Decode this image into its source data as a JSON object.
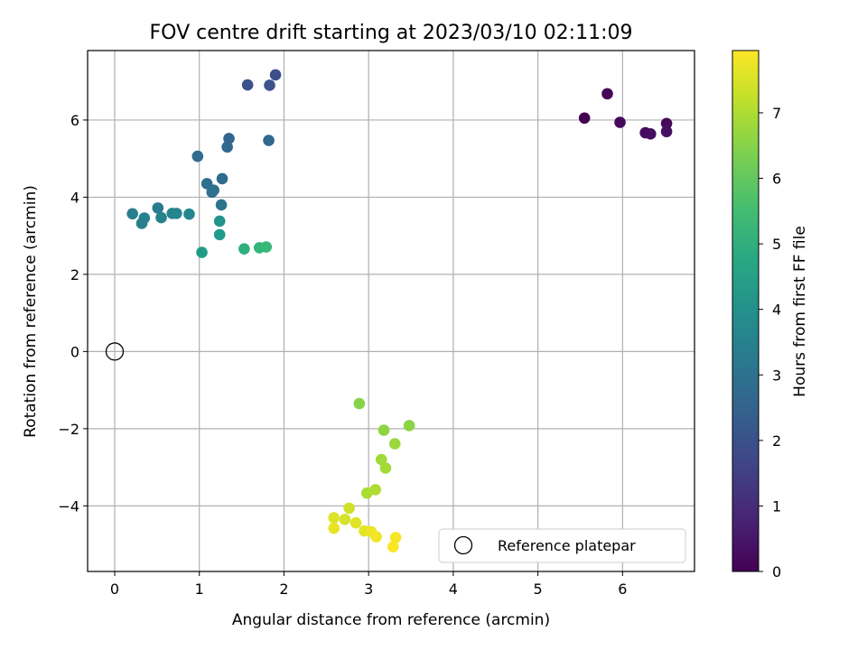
{
  "chart_data": {
    "type": "scatter",
    "title": "FOV centre drift starting at 2023/03/10 02:11:09",
    "xlabel": "Angular distance from reference (arcmin)",
    "ylabel": "Rotation from reference (arcmin)",
    "xlim": [
      -0.32,
      6.85
    ],
    "ylim": [
      -5.7,
      7.8
    ],
    "xticks": [
      0,
      1,
      2,
      3,
      4,
      5,
      6
    ],
    "yticks": [
      -4,
      -2,
      0,
      2,
      4,
      6
    ],
    "grid": true,
    "legend": {
      "placement": "bottom-right",
      "entries": [
        "Reference platepar"
      ]
    },
    "colorbar": {
      "label": "Hours from first FF file",
      "range": [
        0,
        7.95
      ],
      "ticks": [
        0,
        1,
        2,
        3,
        4,
        5,
        6,
        7
      ],
      "colormap": "viridis"
    },
    "reference_point": {
      "name": "Reference platepar",
      "x": 0,
      "y": 0
    },
    "series": [
      {
        "points": [
          {
            "x": 5.55,
            "y": 6.05,
            "h": 0.0
          },
          {
            "x": 5.82,
            "y": 6.68,
            "h": 0.1
          },
          {
            "x": 5.97,
            "y": 5.94,
            "h": 0.18
          },
          {
            "x": 6.27,
            "y": 5.67,
            "h": 0.25
          },
          {
            "x": 6.33,
            "y": 5.64,
            "h": 0.3
          },
          {
            "x": 6.52,
            "y": 5.91,
            "h": 0.2
          },
          {
            "x": 6.52,
            "y": 5.7,
            "h": 0.35
          },
          {
            "x": 1.57,
            "y": 6.91,
            "h": 2.0
          },
          {
            "x": 1.83,
            "y": 6.9,
            "h": 2.05
          },
          {
            "x": 1.9,
            "y": 7.17,
            "h": 1.9
          },
          {
            "x": 1.35,
            "y": 5.52,
            "h": 2.6
          },
          {
            "x": 1.33,
            "y": 5.3,
            "h": 2.65
          },
          {
            "x": 1.82,
            "y": 5.47,
            "h": 2.7
          },
          {
            "x": 0.98,
            "y": 5.06,
            "h": 2.8
          },
          {
            "x": 1.27,
            "y": 4.48,
            "h": 2.75
          },
          {
            "x": 1.09,
            "y": 4.35,
            "h": 2.85
          },
          {
            "x": 1.17,
            "y": 4.18,
            "h": 2.9
          },
          {
            "x": 1.15,
            "y": 4.13,
            "h": 2.95
          },
          {
            "x": 1.26,
            "y": 3.8,
            "h": 3.05
          },
          {
            "x": 0.21,
            "y": 3.57,
            "h": 3.4
          },
          {
            "x": 0.35,
            "y": 3.46,
            "h": 3.5
          },
          {
            "x": 0.32,
            "y": 3.32,
            "h": 3.45
          },
          {
            "x": 0.51,
            "y": 3.72,
            "h": 3.3
          },
          {
            "x": 0.55,
            "y": 3.47,
            "h": 3.55
          },
          {
            "x": 0.68,
            "y": 3.58,
            "h": 3.6
          },
          {
            "x": 0.73,
            "y": 3.58,
            "h": 3.65
          },
          {
            "x": 0.88,
            "y": 3.56,
            "h": 3.7
          },
          {
            "x": 1.24,
            "y": 3.38,
            "h": 4.1
          },
          {
            "x": 1.24,
            "y": 3.03,
            "h": 4.3
          },
          {
            "x": 1.03,
            "y": 2.57,
            "h": 4.4
          },
          {
            "x": 1.53,
            "y": 2.66,
            "h": 5.0
          },
          {
            "x": 1.71,
            "y": 2.69,
            "h": 5.2
          },
          {
            "x": 1.79,
            "y": 2.71,
            "h": 5.35
          },
          {
            "x": 2.89,
            "y": -1.35,
            "h": 6.5
          },
          {
            "x": 3.48,
            "y": -1.92,
            "h": 6.55
          },
          {
            "x": 3.18,
            "y": -2.04,
            "h": 6.6
          },
          {
            "x": 3.31,
            "y": -2.39,
            "h": 6.75
          },
          {
            "x": 3.15,
            "y": -2.8,
            "h": 6.8
          },
          {
            "x": 3.2,
            "y": -3.02,
            "h": 6.85
          },
          {
            "x": 2.98,
            "y": -3.67,
            "h": 6.95
          },
          {
            "x": 3.08,
            "y": -3.58,
            "h": 7.0
          },
          {
            "x": 2.77,
            "y": -4.06,
            "h": 7.4
          },
          {
            "x": 2.59,
            "y": -4.31,
            "h": 7.55
          },
          {
            "x": 2.72,
            "y": -4.35,
            "h": 7.5
          },
          {
            "x": 2.85,
            "y": -4.44,
            "h": 7.6
          },
          {
            "x": 2.59,
            "y": -4.58,
            "h": 7.7
          },
          {
            "x": 2.95,
            "y": -4.65,
            "h": 7.65
          },
          {
            "x": 3.03,
            "y": -4.67,
            "h": 7.75
          },
          {
            "x": 3.09,
            "y": -4.8,
            "h": 7.8
          },
          {
            "x": 3.32,
            "y": -4.82,
            "h": 7.85
          },
          {
            "x": 3.29,
            "y": -5.06,
            "h": 7.9
          }
        ]
      }
    ]
  }
}
